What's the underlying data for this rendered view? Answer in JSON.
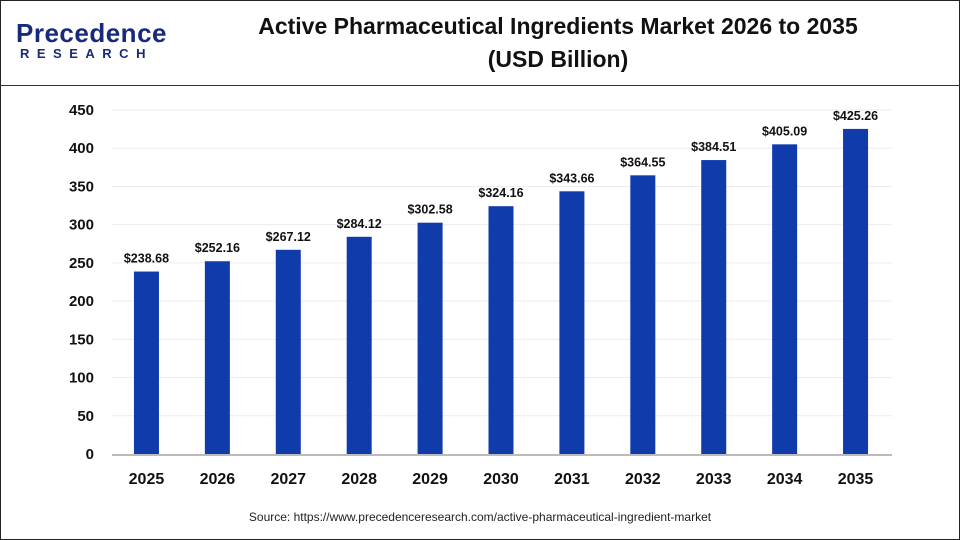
{
  "logo": {
    "line1": "Precedence",
    "line2": "RESEARCH"
  },
  "source": "Source: https://www.precedenceresearch.com/active-pharmaceutical-ingredient-market",
  "chart_data": {
    "type": "bar",
    "title": "Active Pharmaceutical Ingredients Market 2026 to 2035",
    "title_line2": "(USD Billion)",
    "categories": [
      "2025",
      "2026",
      "2027",
      "2028",
      "2029",
      "2030",
      "2031",
      "2032",
      "2033",
      "2034",
      "2035"
    ],
    "values": [
      238.68,
      252.16,
      267.12,
      284.12,
      302.58,
      324.16,
      343.66,
      364.55,
      384.51,
      405.09,
      425.26
    ],
    "data_labels": [
      "$238.68",
      "$252.16",
      "$267.12",
      "$284.12",
      "$302.58",
      "$324.16",
      "$343.66",
      "$364.55",
      "$384.51",
      "$405.09",
      "$425.26"
    ],
    "yticks": [
      0,
      50,
      100,
      150,
      200,
      250,
      300,
      350,
      400,
      450
    ],
    "ylim": [
      0,
      450
    ],
    "xlabel": "",
    "ylabel": "",
    "grid": true,
    "bar_color": "#0f3bab"
  }
}
